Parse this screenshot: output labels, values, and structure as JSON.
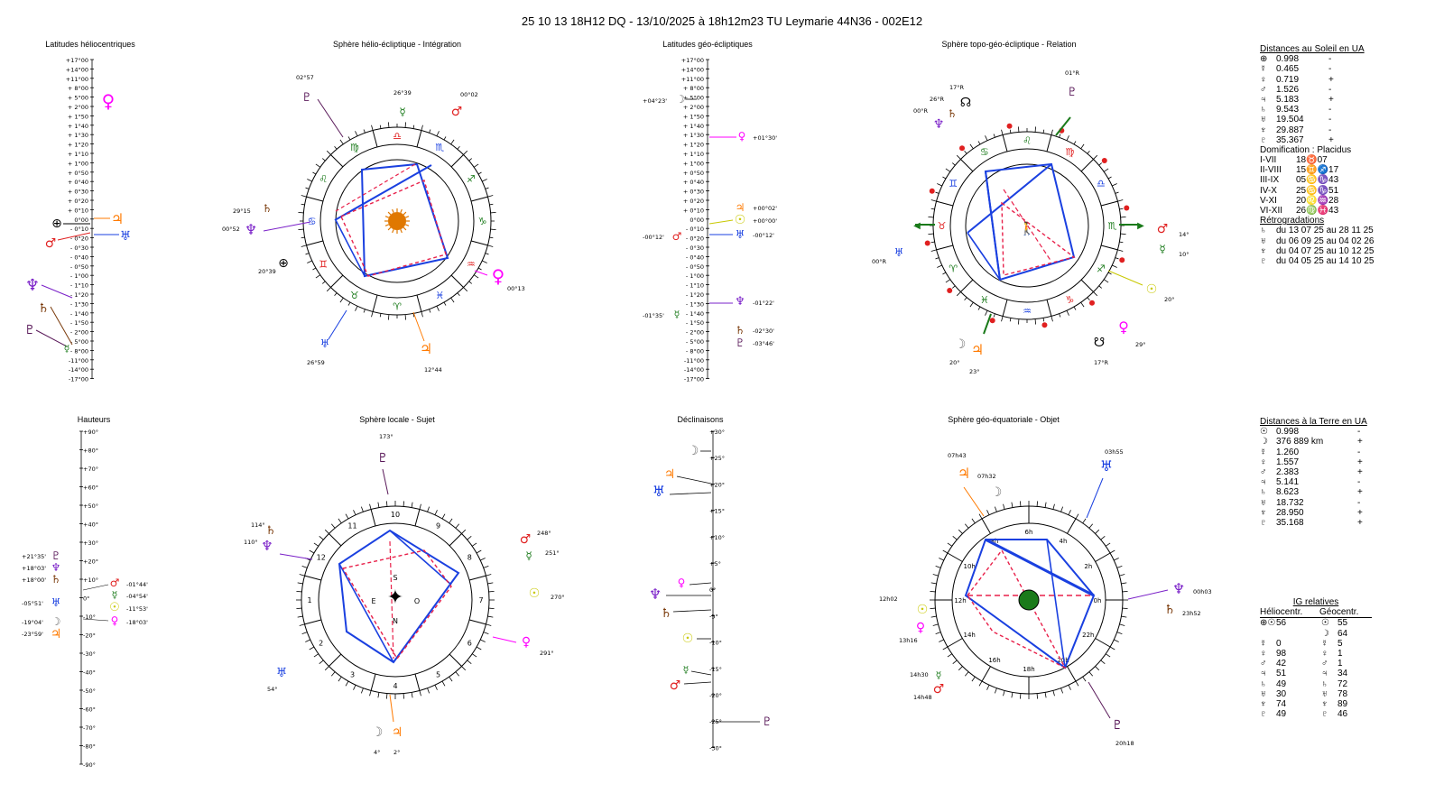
{
  "header": "25 10 13 18H12 DQ   -  13/10/2025 à 18h12m23 TU  Leymarie  44N36 - 002E12",
  "panels": {
    "lat_helio": "Latitudes héliocentriques",
    "sphere_helio": "Sphère hélio-écliptique - Intégration",
    "lat_geo": "Latitudes géo-écliptiques",
    "sphere_topo": "Sphère topo-géo-écliptique - Relation",
    "hauteurs": "Hauteurs",
    "sphere_locale": "Sphère locale - Sujet",
    "declinaisons": "Déclinaisons",
    "sphere_equat": "Sphère géo-équatoriale - Objet"
  },
  "lat_scale": [
    "+17°00",
    "+14°00",
    "+11°00",
    "+ 8°00",
    "+ 5°00",
    "+ 2°00",
    "+ 1°50",
    "+ 1°40",
    "+ 1°30",
    "+ 1°20",
    "+ 1°10",
    "+ 1°00",
    "+ 0°50",
    "+ 0°40",
    "+ 0°30",
    "+ 0°20",
    "+ 0°10",
    "0°00",
    "- 0°10",
    "- 0°20",
    "- 0°30",
    "- 0°40",
    "- 0°50",
    "- 1°00",
    "- 1°10",
    "- 1°20",
    "- 1°30",
    "- 1°40",
    "- 1°50",
    "- 2°00",
    "- 5°00",
    "- 8°00",
    "-11°00",
    "-14°00",
    "-17°00"
  ],
  "alt_scale": [
    "+90°",
    "+80°",
    "+70°",
    "+60°",
    "+50°",
    "+40°",
    "+30°",
    "+20°",
    "+10°",
    "0°",
    "-10°",
    "-20°",
    "-30°",
    "-40°",
    "-50°",
    "-60°",
    "-70°",
    "-80°",
    "-90°"
  ],
  "decl_scale": [
    "+30°",
    "+25°",
    "+20°",
    "+15°",
    "+10°",
    "+5°",
    "0°",
    "-5°",
    "-10°",
    "-15°",
    "-20°",
    "-25°",
    "-30°"
  ],
  "lat_geo_labels": {
    "moon": "+04°23'",
    "venus": "+01°30'",
    "jupiter": "+00°02'",
    "sun": "+00°00'",
    "mars": "-00°12'",
    "uranus": "-00°12'",
    "mercury": "-01°35'",
    "neptune": "-01°22'",
    "saturn": "-02°30'",
    "pluto": "-03°46'"
  },
  "helio_labels": {
    "pluto": "02°57",
    "mercury": "26°39",
    "mars": "00°02",
    "saturn": "29°15",
    "neptune": "00°52",
    "earth": "20°39",
    "venus": "00°13",
    "uranus": "26°59",
    "jupiter": "12°44"
  },
  "topo_labels": {
    "pluto": "01°R",
    "saturn": "17°R",
    "neptune_r": "26°R",
    "uranus_r": "00°R",
    "uranus2": "00°R",
    "mars": "14°",
    "mercury": "10°",
    "sun": "20°",
    "moon": "20°",
    "jupiter": "23°",
    "venus": "29°",
    "node": "17°R"
  },
  "locale_labels": {
    "pluto": "173°",
    "saturn": "114°",
    "neptune": "110°",
    "mars": "248°",
    "mercury": "251°",
    "sun": "270°",
    "venus": "291°",
    "uranus": "54°",
    "moon": "4°",
    "jupiter": "2°"
  },
  "equat_labels": {
    "jupiter": "07h43",
    "moon": "07h32",
    "uranus": "03h55",
    "neptune": "00h03",
    "saturn": "23h52",
    "sun": "12h02",
    "venus": "13h16",
    "mercury": "14h30",
    "mars": "14h48",
    "pluto": "20h18"
  },
  "haut_labels": [
    "+21°35'",
    "+18°03'",
    "+18°00'",
    "-05°51'",
    "-19°04'",
    "-23°59'",
    "-01°44'",
    "-04°54'",
    "-11°53'",
    "-18°03'"
  ],
  "dist_soleil": {
    "title": "Distances au Soleil en UA",
    "rows": [
      {
        "g": "⊕",
        "v": "0.998",
        "s": "-"
      },
      {
        "g": "☿",
        "v": "0.465",
        "s": "-"
      },
      {
        "g": "♀",
        "v": "0.719",
        "s": "+"
      },
      {
        "g": "♂",
        "v": "1.526",
        "s": "-"
      },
      {
        "g": "♃",
        "v": "5.183",
        "s": "+"
      },
      {
        "g": "♄",
        "v": "9.543",
        "s": "-"
      },
      {
        "g": "♅",
        "v": "19.504",
        "s": "-"
      },
      {
        "g": "♆",
        "v": "29.887",
        "s": "-"
      },
      {
        "g": "♇",
        "v": "35.367",
        "s": "+"
      }
    ]
  },
  "domif": {
    "title": "Domification : Placidus",
    "rows": [
      {
        "k": "I-VII",
        "v": "18♉07"
      },
      {
        "k": "II-VIII",
        "v": "15♊♐17"
      },
      {
        "k": "III-IX",
        "v": "05♋♑43"
      },
      {
        "k": "IV-X",
        "v": "25♋♑51"
      },
      {
        "k": "V-XI",
        "v": "20♌♒28"
      },
      {
        "k": "VI-XII",
        "v": "26♍♓43"
      }
    ]
  },
  "retro": {
    "title": "Rétrogradations",
    "rows": [
      {
        "g": "♄",
        "v": "du 13 07 25 au 28 11 25"
      },
      {
        "g": "♅",
        "v": "du 06 09 25 au 04 02 26"
      },
      {
        "g": "♆",
        "v": "du 04 07 25 au 10 12 25"
      },
      {
        "g": "♇",
        "v": "du 04 05 25 au 14 10 25"
      }
    ]
  },
  "dist_terre": {
    "title": "Distances à la Terre en UA",
    "rows": [
      {
        "g": "☉",
        "v": "0.998",
        "s": "-"
      },
      {
        "g": "☽",
        "v": "376 889 km",
        "s": "+"
      },
      {
        "g": "☿",
        "v": "1.260",
        "s": "-"
      },
      {
        "g": "♀",
        "v": "1.557",
        "s": "+"
      },
      {
        "g": "♂",
        "v": "2.383",
        "s": "+"
      },
      {
        "g": "♃",
        "v": "5.141",
        "s": "-"
      },
      {
        "g": "♄",
        "v": "8.623",
        "s": "+"
      },
      {
        "g": "♅",
        "v": "18.732",
        "s": "-"
      },
      {
        "g": "♆",
        "v": "28.950",
        "s": "+"
      },
      {
        "g": "♇",
        "v": "35.168",
        "s": "+"
      }
    ]
  },
  "ig": {
    "title": "IG relatives",
    "col1": "Héliocentr.",
    "col2": "Géocentr.",
    "rows": [
      {
        "g1": "⊕☉",
        "v1": "56",
        "g2": "☉",
        "v2": "55"
      },
      {
        "g1": "",
        "v1": "",
        "g2": "☽",
        "v2": "64"
      },
      {
        "g1": "☿",
        "v1": "0",
        "g2": "☿",
        "v2": "5"
      },
      {
        "g1": "♀",
        "v1": "98",
        "g2": "♀",
        "v2": "1"
      },
      {
        "g1": "♂",
        "v1": "42",
        "g2": "♂",
        "v2": "1"
      },
      {
        "g1": "♃",
        "v1": "51",
        "g2": "♃",
        "v2": "34"
      },
      {
        "g1": "♄",
        "v1": "49",
        "g2": "♄",
        "v2": "72"
      },
      {
        "g1": "♅",
        "v1": "30",
        "g2": "♅",
        "v2": "78"
      },
      {
        "g1": "♆",
        "v1": "74",
        "g2": "♆",
        "v2": "89"
      },
      {
        "g1": "♇",
        "v1": "49",
        "g2": "♇",
        "v2": "46"
      }
    ]
  },
  "colors": {
    "pluto": "#5a1a5a",
    "mercury": "#1a7a1a",
    "mars": "#e02020",
    "venus": "#ff00ff",
    "sun": "#c8c800",
    "jupiter": "#ff7a00",
    "saturn": "#7a3a0a",
    "neptune": "#7a20c8",
    "uranus": "#1a40e0",
    "moon": "#707070",
    "aspect_blue": "#1a40e0",
    "aspect_red": "#e8204a"
  }
}
